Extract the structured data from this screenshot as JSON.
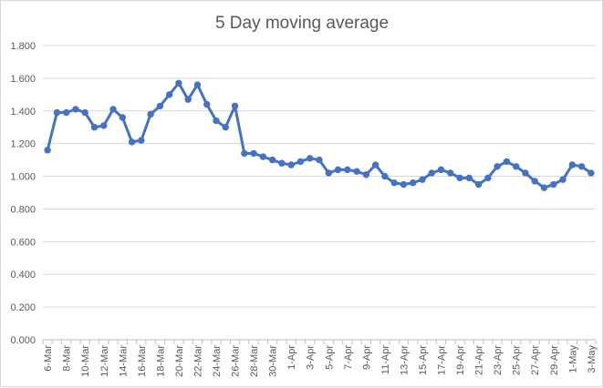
{
  "chart_data": {
    "type": "line",
    "title": "5 Day moving average",
    "xlabel": "",
    "ylabel": "",
    "ylim": [
      0,
      1.8
    ],
    "yticks": [
      "0.000",
      "0.200",
      "0.400",
      "0.600",
      "0.800",
      "1.000",
      "1.200",
      "1.400",
      "1.600",
      "1.800"
    ],
    "grid": true,
    "legend": "none",
    "line_color": "#4472c4",
    "x_tick_labels": [
      "6-Mar",
      "8-Mar",
      "10-Mar",
      "12-Mar",
      "14-Mar",
      "16-Mar",
      "18-Mar",
      "20-Mar",
      "22-Mar",
      "24-Mar",
      "26-Mar",
      "28-Mar",
      "30-Mar",
      "1-Apr",
      "3-Apr",
      "5-Apr",
      "7-Apr",
      "9-Apr",
      "11-Apr",
      "13-Apr",
      "15-Apr",
      "17-Apr",
      "19-Apr",
      "21-Apr",
      "23-Apr",
      "25-Apr",
      "27-Apr",
      "29-Apr",
      "1-May",
      "3-May"
    ],
    "x": [
      "6-Mar",
      "7-Mar",
      "8-Mar",
      "9-Mar",
      "10-Mar",
      "11-Mar",
      "12-Mar",
      "13-Mar",
      "14-Mar",
      "15-Mar",
      "16-Mar",
      "17-Mar",
      "18-Mar",
      "19-Mar",
      "20-Mar",
      "21-Mar",
      "22-Mar",
      "23-Mar",
      "24-Mar",
      "25-Mar",
      "26-Mar",
      "27-Mar",
      "28-Mar",
      "29-Mar",
      "30-Mar",
      "31-Mar",
      "1-Apr",
      "2-Apr",
      "3-Apr",
      "4-Apr",
      "5-Apr",
      "6-Apr",
      "7-Apr",
      "8-Apr",
      "9-Apr",
      "10-Apr",
      "11-Apr",
      "12-Apr",
      "13-Apr",
      "14-Apr",
      "15-Apr",
      "16-Apr",
      "17-Apr",
      "18-Apr",
      "19-Apr",
      "20-Apr",
      "21-Apr",
      "22-Apr",
      "23-Apr",
      "24-Apr",
      "25-Apr",
      "26-Apr",
      "27-Apr",
      "28-Apr",
      "29-Apr",
      "30-Apr",
      "1-May",
      "2-May",
      "3-May"
    ],
    "values": [
      1.16,
      1.39,
      1.39,
      1.41,
      1.39,
      1.3,
      1.31,
      1.41,
      1.36,
      1.21,
      1.22,
      1.38,
      1.43,
      1.5,
      1.57,
      1.47,
      1.56,
      1.44,
      1.34,
      1.3,
      1.43,
      1.14,
      1.14,
      1.12,
      1.1,
      1.08,
      1.07,
      1.09,
      1.11,
      1.1,
      1.02,
      1.04,
      1.04,
      1.03,
      1.01,
      1.07,
      1.0,
      0.96,
      0.95,
      0.96,
      0.98,
      1.02,
      1.04,
      1.02,
      0.99,
      0.99,
      0.95,
      0.99,
      1.06,
      1.09,
      1.06,
      1.02,
      0.97,
      0.93,
      0.95,
      0.98,
      1.07,
      1.06,
      1.02
    ]
  }
}
